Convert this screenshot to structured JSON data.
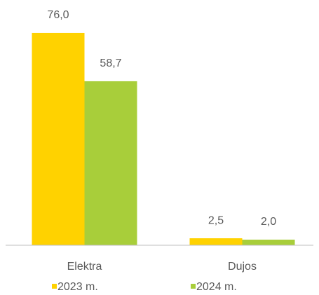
{
  "chart_data": {
    "type": "bar",
    "categories": [
      "Elektra",
      "Dujos"
    ],
    "series": [
      {
        "name": "2023 m.",
        "color": "#FFD200",
        "values": [
          76.0,
          2.5
        ],
        "value_labels": [
          "76,0",
          "2,5"
        ]
      },
      {
        "name": "2024 m.",
        "color": "#A8CE3A",
        "values": [
          58.7,
          2.0
        ],
        "value_labels": [
          "58,7",
          "2,0"
        ]
      }
    ],
    "ylim": [
      0,
      80
    ]
  }
}
